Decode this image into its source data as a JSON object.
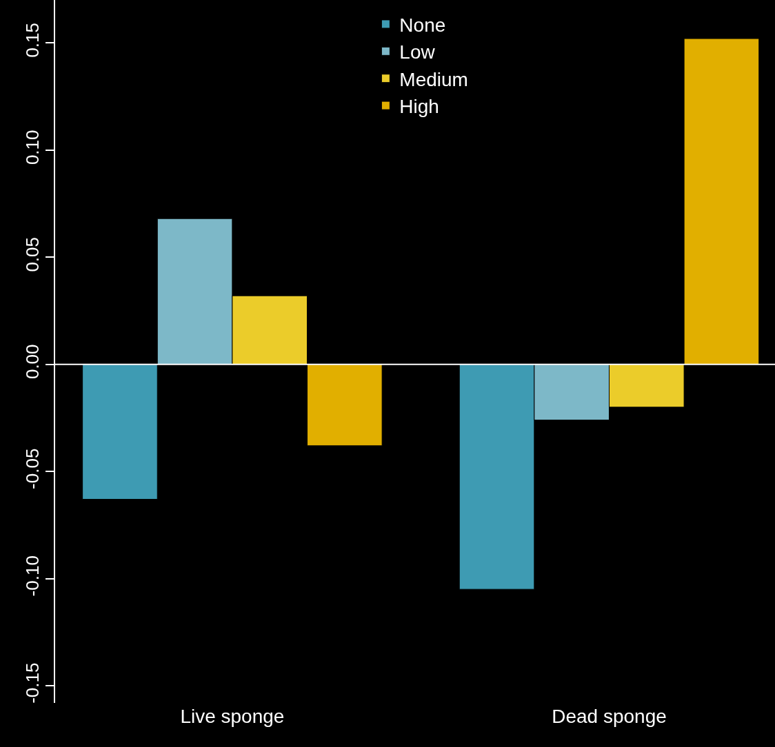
{
  "chart_data": {
    "type": "bar",
    "categories": [
      "Live sponge",
      "Dead sponge"
    ],
    "series": [
      {
        "name": "None",
        "color": "#3e9bb3",
        "values": [
          -0.063,
          -0.105
        ]
      },
      {
        "name": "Low",
        "color": "#7db8c8",
        "values": [
          0.068,
          -0.026
        ]
      },
      {
        "name": "Medium",
        "color": "#ebcc2a",
        "values": [
          0.032,
          -0.02
        ]
      },
      {
        "name": "High",
        "color": "#e1af00",
        "values": [
          -0.038,
          0.152
        ]
      }
    ],
    "ylim": [
      -0.158,
      0.17
    ],
    "yticks": [
      {
        "value": -0.15,
        "label": "-0.15"
      },
      {
        "value": -0.1,
        "label": "-0.10"
      },
      {
        "value": -0.05,
        "label": "-0.05"
      },
      {
        "value": 0,
        "label": "0.00"
      },
      {
        "value": 0.05,
        "label": "0.05"
      },
      {
        "value": 0.1,
        "label": "0.10"
      },
      {
        "value": 0.15,
        "label": "0.15"
      }
    ],
    "ref_lines": [
      {
        "axis": "y",
        "value": 0,
        "color": "#ffffff"
      }
    ],
    "legend": "top",
    "grid": false
  }
}
